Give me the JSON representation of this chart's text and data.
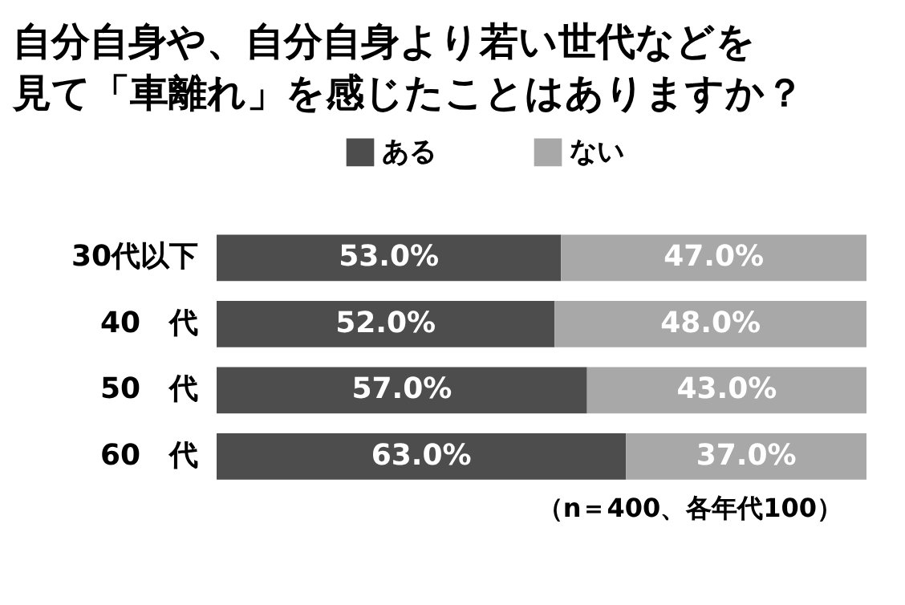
{
  "chart_data": {
    "type": "bar",
    "orientation": "horizontal",
    "stacked": true,
    "title": "自分自身や、自分自身より若い世代などを見て「車離れ」を感じたことはありますか？",
    "categories": [
      "30代以下",
      "40　代",
      "50　代",
      "60　代"
    ],
    "series": [
      {
        "name": "ある",
        "color": "#4d4d4d",
        "values": [
          53.0,
          52.0,
          57.0,
          63.0
        ],
        "value_labels": [
          "53.0%",
          "52.0%",
          "57.0%",
          "63.0%"
        ]
      },
      {
        "name": "ない",
        "color": "#a8a8a8",
        "values": [
          47.0,
          48.0,
          43.0,
          37.0
        ],
        "value_labels": [
          "47.0%",
          "48.0%",
          "43.0%",
          "37.0%"
        ]
      }
    ],
    "legend": "top",
    "annotations": [
      "（n＝400、各年代100）"
    ]
  }
}
